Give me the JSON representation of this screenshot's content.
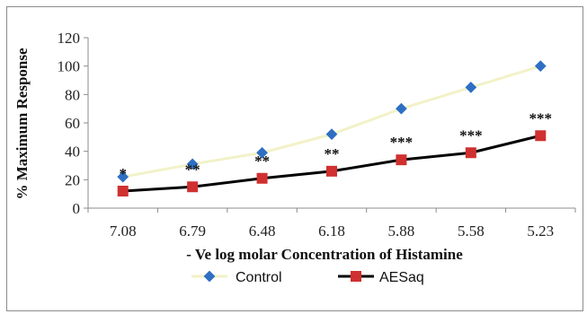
{
  "chart_data": {
    "type": "line",
    "title": "",
    "xlabel": "- Ve log molar Concentration of Histamine",
    "ylabel": "% Maximum Response",
    "categories": [
      "7.08",
      "6.79",
      "6.48",
      "6.18",
      "5.88",
      "5.58",
      "5.23"
    ],
    "ylim": [
      0,
      120
    ],
    "yticks": [
      0,
      20,
      40,
      60,
      80,
      100,
      120
    ],
    "grid": false,
    "legend_position": "bottom",
    "series": [
      {
        "name": "Control",
        "values": [
          22,
          31,
          39,
          52,
          70,
          85,
          100
        ],
        "marker": "diamond",
        "marker_color": "#2e6fc4",
        "line_color": "#f2f2c8"
      },
      {
        "name": "AESaq",
        "values": [
          12,
          15,
          21,
          26,
          34,
          39,
          51
        ],
        "marker": "square",
        "marker_color": "#d03030",
        "line_color": "#000000"
      }
    ],
    "annotations": [
      "*",
      "**",
      "**",
      "**",
      "***",
      "***",
      "***"
    ]
  }
}
